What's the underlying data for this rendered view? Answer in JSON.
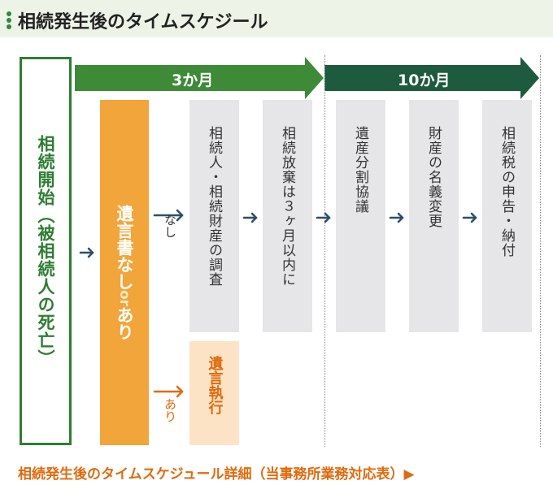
{
  "header": {
    "title": "相続発生後のタイムスケジール"
  },
  "timeline": {
    "first_label": "3か月",
    "second_label": "10か月",
    "first_color": "#3d8b37",
    "second_color": "#1e5a3e"
  },
  "start": {
    "label": "相続開始（被相続人の死亡）"
  },
  "will": {
    "none": "遺言書なし",
    "or": "or",
    "present": "あり"
  },
  "branches": {
    "none_label": "なし",
    "present_label": "あり"
  },
  "steps": [
    "相続人・相続財産の調査",
    "相続放棄は３ヶ月以内に",
    "遺産分割協議",
    "財産の名義変更",
    "相続税の申告・納付"
  ],
  "execution": {
    "label": "遺言執行"
  },
  "footer": {
    "link_text": "相続発生後のタイムスケジュール詳細（当事務所業務対応表）▶"
  }
}
